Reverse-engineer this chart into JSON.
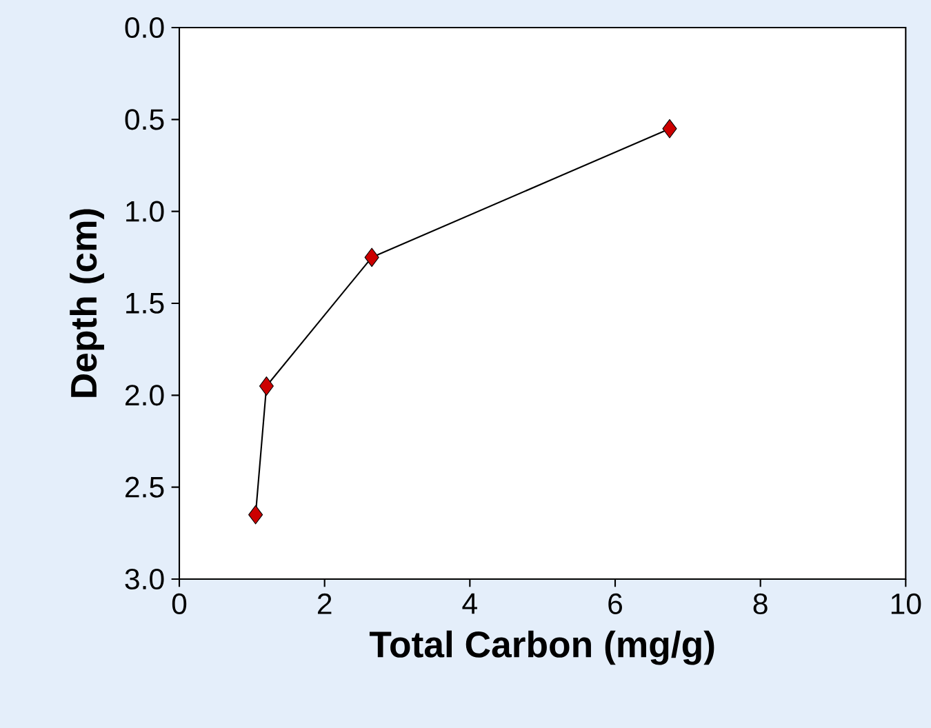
{
  "chart_data": {
    "type": "line",
    "xlabel": "Total Carbon (mg/g)",
    "ylabel": "Depth (cm)",
    "series": [
      {
        "color": "#cc0000",
        "x": [
          6.75,
          2.65,
          1.2,
          1.05
        ],
        "values": [
          0.55,
          1.25,
          1.95,
          2.65
        ]
      }
    ],
    "xlim": [
      0,
      10
    ],
    "xticks": [
      0,
      2,
      4,
      6,
      8,
      10
    ],
    "ylim": [
      3,
      0
    ],
    "yticks": [
      {
        "value": 0,
        "label": "0.0"
      },
      {
        "value": 0.5,
        "label": "0.5"
      },
      {
        "value": 1,
        "label": "1.0"
      },
      {
        "value": 1.5,
        "label": "1.5"
      },
      {
        "value": 2,
        "label": "2.0"
      },
      {
        "value": 2.5,
        "label": "2.5"
      },
      {
        "value": 3,
        "label": "3.0"
      }
    ],
    "marker": "diamond",
    "line_style": "solid",
    "grid": false
  }
}
